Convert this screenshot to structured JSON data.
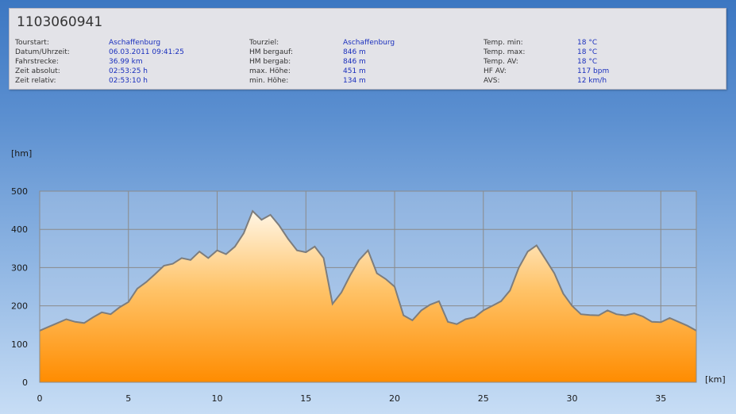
{
  "header": {
    "tour_id": "1103060941",
    "columns": [
      [
        {
          "label": "Tourstart:",
          "value": "Aschaffenburg"
        },
        {
          "label": "Datum/Uhrzeit:",
          "value": "06.03.2011 09:41:25"
        },
        {
          "label": "Fahrstrecke:",
          "value": "36.99 km"
        },
        {
          "label": "Zeit absolut:",
          "value": "02:53:25 h"
        },
        {
          "label": "Zeit relativ:",
          "value": "02:53:10 h"
        }
      ],
      [
        {
          "label": "Tourziel:",
          "value": "Aschaffenburg"
        },
        {
          "label": "HM bergauf:",
          "value": "846 m"
        },
        {
          "label": "HM bergab:",
          "value": "846 m"
        },
        {
          "label": "max. Höhe:",
          "value": "451 m"
        },
        {
          "label": "min. Höhe:",
          "value": "134 m"
        }
      ],
      [
        {
          "label": "Temp. min:",
          "value": "18 °C"
        },
        {
          "label": "Temp. max:",
          "value": "18 °C"
        },
        {
          "label": "Temp. AV:",
          "value": "18 °C"
        },
        {
          "label": "HF AV:",
          "value": "117 bpm"
        },
        {
          "label": "AVS:",
          "value": "12 km/h"
        }
      ]
    ]
  },
  "chart_data": {
    "type": "area",
    "xlabel": "[km]",
    "ylabel": "[hm]",
    "xlim": [
      0,
      37
    ],
    "ylim": [
      0,
      500
    ],
    "xticks": [
      0,
      5,
      10,
      15,
      20,
      25,
      30,
      35
    ],
    "xtick_labels": [
      "0",
      "5",
      "10",
      "15",
      "20",
      "25",
      "30",
      "35"
    ],
    "yticks": [
      0,
      100,
      200,
      300,
      400,
      500
    ],
    "ytick_labels": [
      "0",
      "100",
      "200",
      "300",
      "400",
      "500"
    ],
    "grid": true,
    "line_color": "#7d7d7d",
    "fill_top_color": "#fff6e6",
    "fill_bottom_color": "#ff8c00",
    "plot_background": "#bcd1eb",
    "x": [
      0,
      0.5,
      1,
      1.5,
      2,
      2.5,
      3,
      3.5,
      4,
      4.5,
      5,
      5.5,
      6,
      6.5,
      7,
      7.5,
      8,
      8.5,
      9,
      9.5,
      10,
      10.5,
      11,
      11.5,
      12,
      12.5,
      13,
      13.5,
      14,
      14.5,
      15,
      15.5,
      16,
      16.5,
      17,
      17.5,
      18,
      18.5,
      19,
      19.5,
      20,
      20.5,
      21,
      21.5,
      22,
      22.5,
      23,
      23.5,
      24,
      24.5,
      25,
      25.5,
      26,
      26.5,
      27,
      27.5,
      28,
      28.5,
      29,
      29.5,
      30,
      30.5,
      31,
      31.5,
      32,
      32.5,
      33,
      33.5,
      34,
      34.5,
      35,
      35.5,
      36,
      36.5,
      37
    ],
    "y": [
      135,
      145,
      155,
      165,
      158,
      155,
      170,
      183,
      178,
      196,
      210,
      245,
      262,
      283,
      305,
      310,
      325,
      320,
      342,
      325,
      345,
      335,
      355,
      390,
      448,
      425,
      438,
      410,
      375,
      345,
      340,
      355,
      325,
      205,
      235,
      280,
      320,
      345,
      285,
      270,
      250,
      175,
      162,
      188,
      203,
      212,
      158,
      152,
      165,
      170,
      188,
      200,
      212,
      240,
      300,
      342,
      358,
      322,
      285,
      232,
      200,
      178,
      176,
      175,
      188,
      178,
      175,
      180,
      172,
      158,
      157,
      168,
      158,
      148,
      135
    ]
  }
}
